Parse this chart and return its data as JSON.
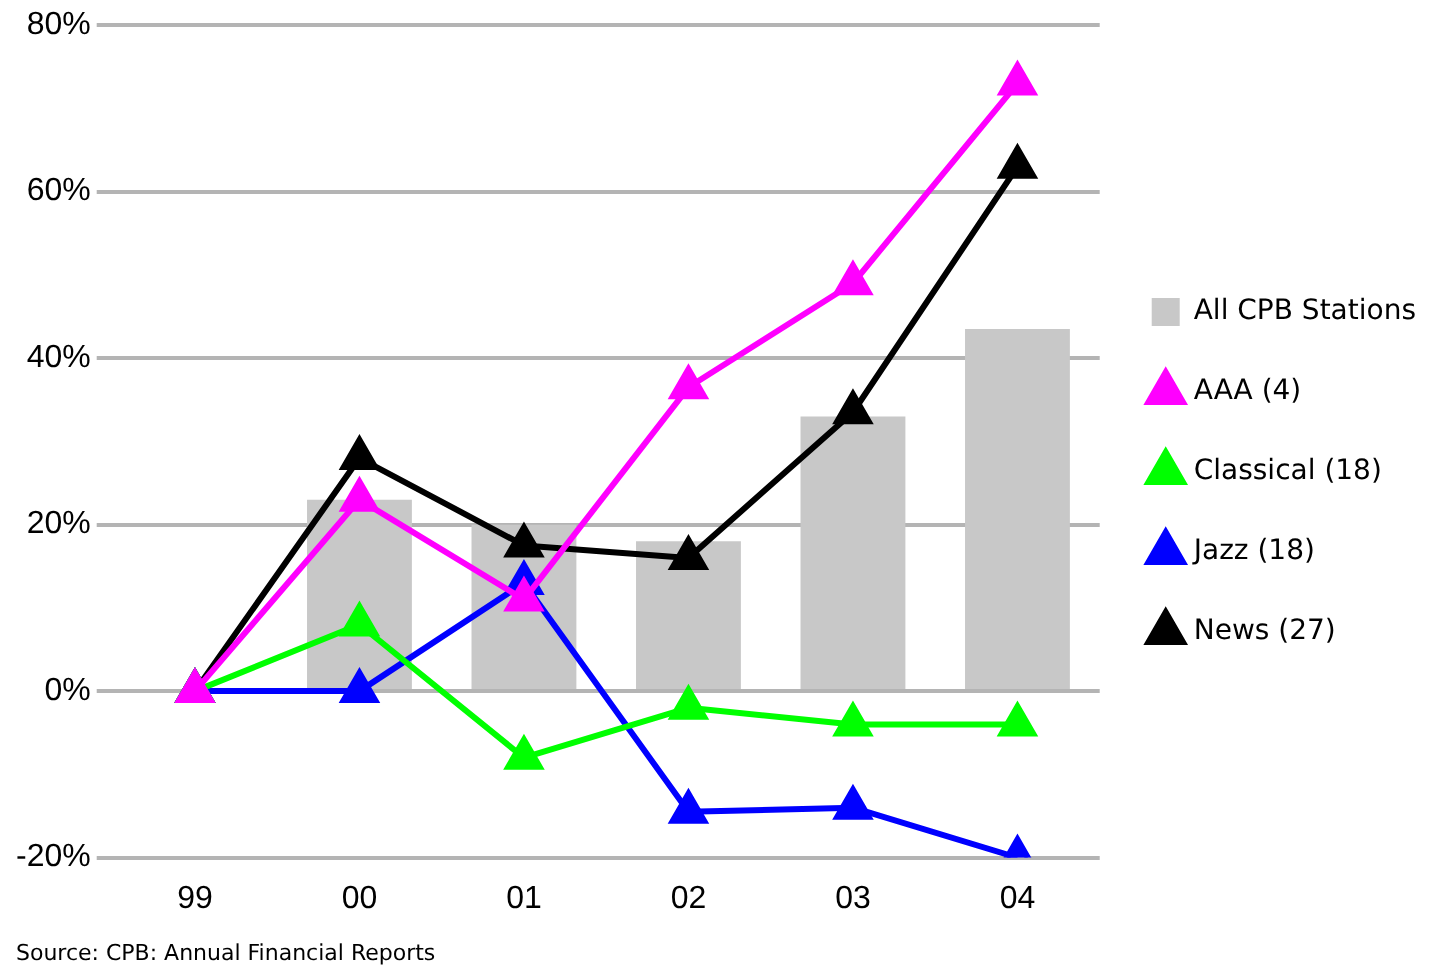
{
  "chart_data": {
    "type": "bar",
    "categories": [
      "99",
      "00",
      "01",
      "02",
      "03",
      "04"
    ],
    "series": [
      {
        "name": "All CPB Stations",
        "color": "#c8c8c8",
        "values": [
          null,
          23,
          20,
          18,
          33,
          43.5
        ]
      },
      {
        "name": "AAA (4)",
        "type": "line",
        "color": "#ff00ff",
        "values": [
          0,
          23,
          11,
          36.5,
          49,
          73
        ]
      },
      {
        "name": "Classical (18)",
        "type": "line",
        "color": "#00ff00",
        "values": [
          0,
          8,
          -8,
          -2,
          -4,
          -4
        ]
      },
      {
        "name": "Jazz (18)",
        "type": "line",
        "color": "#0000ff",
        "values": [
          0,
          0,
          13,
          -14.5,
          -14,
          -20
        ]
      },
      {
        "name": "News (27)",
        "type": "line",
        "color": "#000000",
        "values": [
          0,
          28,
          17.5,
          16,
          33.5,
          63
        ]
      }
    ],
    "ylim": [
      -20,
      80
    ],
    "yticks": [
      {
        "value": -20,
        "label": "-20%"
      },
      {
        "value": 0,
        "label": "0%"
      },
      {
        "value": 20,
        "label": "20%"
      },
      {
        "value": 40,
        "label": "40%"
      },
      {
        "value": 60,
        "label": "60%"
      },
      {
        "value": 80,
        "label": "80%"
      }
    ],
    "grid": "y",
    "legend": "right",
    "marker": "triangle",
    "line_style": "solid",
    "annotations": [
      "Source: CPB: Annual Financial Reports"
    ]
  }
}
